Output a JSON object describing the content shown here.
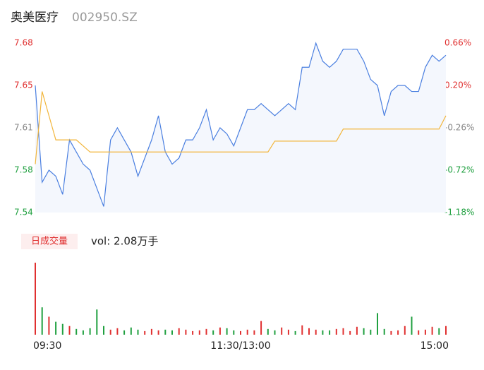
{
  "chart_data": {
    "type": "intraday",
    "title": "奥美医疗",
    "code": "002950.SZ",
    "volume_label": "日成交量",
    "volume_text": "vol: 2.08万手",
    "xlim": [
      0,
      240
    ],
    "xticks": [
      {
        "value": 0,
        "label": "09:30"
      },
      {
        "value": 120,
        "label": "11:30/13:00"
      },
      {
        "value": 240,
        "label": "15:00"
      }
    ],
    "ylim": [
      7.54,
      7.68
    ],
    "yticks": [
      {
        "value": 7.68,
        "label": "7.68"
      },
      {
        "value": 7.645,
        "label": "7.65"
      },
      {
        "value": 7.61,
        "label": "7.61"
      },
      {
        "value": 7.575,
        "label": "7.58"
      },
      {
        "value": 7.54,
        "label": "7.54"
      }
    ],
    "y2lim": [
      -1.18,
      0.66
    ],
    "y2ticks": [
      {
        "value": 0.66,
        "label": "0.66%"
      },
      {
        "value": 0.2,
        "label": "0.20%"
      },
      {
        "value": -0.26,
        "label": "-0.26%"
      },
      {
        "value": -0.72,
        "label": "-0.72%"
      },
      {
        "value": -1.18,
        "label": "-1.18%"
      }
    ],
    "x": [
      0,
      4,
      8,
      12,
      16,
      20,
      24,
      28,
      32,
      36,
      40,
      44,
      48,
      52,
      56,
      60,
      64,
      68,
      72,
      76,
      80,
      84,
      88,
      92,
      96,
      100,
      104,
      108,
      112,
      116,
      120,
      124,
      128,
      132,
      136,
      140,
      144,
      148,
      152,
      156,
      160,
      164,
      168,
      172,
      176,
      180,
      184,
      188,
      192,
      196,
      200,
      204,
      208,
      212,
      216,
      220,
      224,
      228,
      232,
      236,
      240
    ],
    "series": [
      {
        "name": "price",
        "color": "#4a7fe0",
        "values": [
          7.645,
          7.565,
          7.575,
          7.57,
          7.555,
          7.6,
          7.59,
          7.58,
          7.575,
          7.56,
          7.545,
          7.6,
          7.61,
          7.6,
          7.59,
          7.57,
          7.585,
          7.6,
          7.62,
          7.59,
          7.58,
          7.585,
          7.6,
          7.6,
          7.61,
          7.625,
          7.6,
          7.61,
          7.605,
          7.595,
          7.61,
          7.625,
          7.625,
          7.63,
          7.625,
          7.62,
          7.625,
          7.63,
          7.625,
          7.66,
          7.66,
          7.68,
          7.665,
          7.66,
          7.665,
          7.675,
          7.675,
          7.675,
          7.665,
          7.65,
          7.645,
          7.62,
          7.64,
          7.645,
          7.645,
          7.64,
          7.64,
          7.66,
          7.67,
          7.665,
          7.67
        ]
      },
      {
        "name": "average",
        "color": "#f2b53a",
        "values": [
          7.58,
          7.64,
          7.62,
          7.6,
          7.6,
          7.6,
          7.6,
          7.595,
          7.59,
          7.59,
          7.59,
          7.59,
          7.59,
          7.59,
          7.59,
          7.59,
          7.59,
          7.59,
          7.59,
          7.59,
          7.59,
          7.59,
          7.59,
          7.59,
          7.59,
          7.59,
          7.59,
          7.59,
          7.59,
          7.59,
          7.59,
          7.59,
          7.59,
          7.59,
          7.59,
          7.599,
          7.599,
          7.599,
          7.599,
          7.599,
          7.599,
          7.599,
          7.599,
          7.599,
          7.599,
          7.609,
          7.609,
          7.609,
          7.609,
          7.609,
          7.609,
          7.609,
          7.609,
          7.609,
          7.609,
          7.609,
          7.609,
          7.609,
          7.609,
          7.609,
          7.62
        ]
      },
      {
        "name": "volume",
        "values": [
          1000,
          380,
          250,
          180,
          150,
          120,
          80,
          60,
          90,
          350,
          120,
          70,
          90,
          60,
          100,
          70,
          50,
          80,
          60,
          70,
          60,
          90,
          70,
          50,
          60,
          80,
          60,
          100,
          90,
          60,
          50,
          70,
          60,
          190,
          80,
          60,
          100,
          70,
          50,
          130,
          90,
          70,
          60,
          60,
          80,
          90,
          50,
          110,
          90,
          70,
          300,
          80,
          50,
          60,
          120,
          250,
          60,
          70,
          110,
          90,
          120
        ]
      }
    ]
  }
}
